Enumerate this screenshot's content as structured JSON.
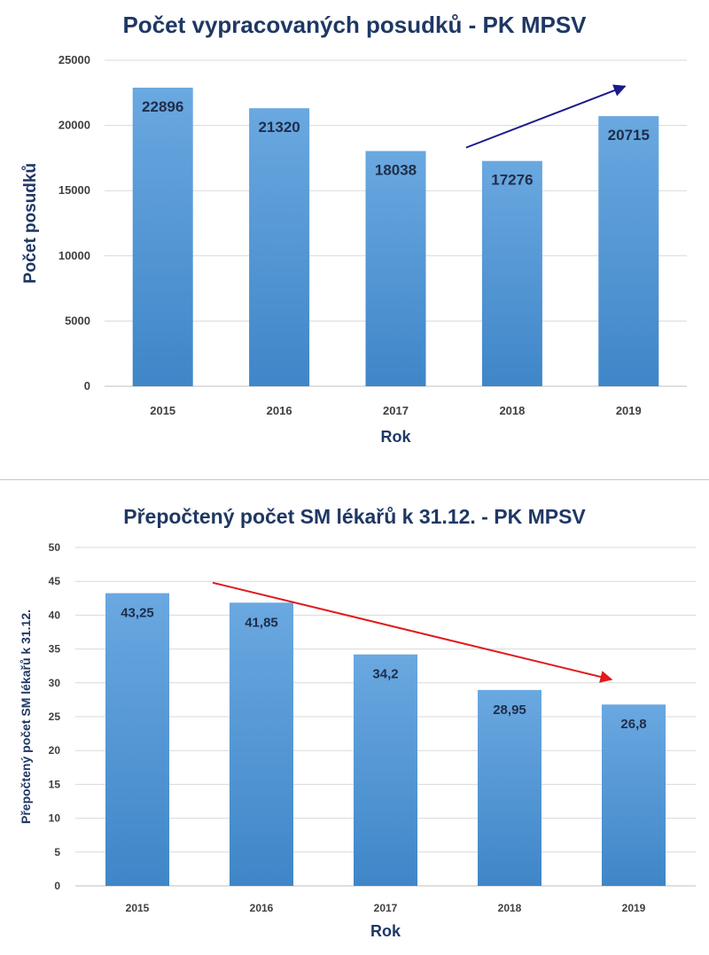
{
  "chart_data": [
    {
      "type": "bar",
      "title": "Počet vypracovaných posudků - PK MPSV",
      "xlabel": "Rok",
      "ylabel": "Počet posudků",
      "categories": [
        "2015",
        "2016",
        "2017",
        "2018",
        "2019"
      ],
      "values": [
        22896,
        21320,
        18038,
        17276,
        20715
      ],
      "value_labels": [
        "22896",
        "21320",
        "18038",
        "17276",
        "20715"
      ],
      "ylim": [
        0,
        25000
      ],
      "yticks": [
        0,
        5000,
        10000,
        15000,
        20000,
        25000
      ],
      "ytick_labels": [
        "0",
        "5000",
        "10000",
        "15000",
        "20000",
        "25000"
      ],
      "grid": true,
      "bar_color": "#5b9bd5",
      "trend_arrow": {
        "from": [
          "2018",
          18300
        ],
        "to": [
          "2019",
          23000
        ],
        "color": "#1a1a8c"
      }
    },
    {
      "type": "bar",
      "title": "Přepočtený  počet SM lékařů k 31.12. - PK MPSV",
      "xlabel": "Rok",
      "ylabel": "Přepočtený počet SM lékařů k 31.12.",
      "categories": [
        "2015",
        "2016",
        "2017",
        "2018",
        "2019"
      ],
      "values": [
        43.25,
        41.85,
        34.2,
        28.95,
        26.8
      ],
      "value_labels": [
        "43,25",
        "41,85",
        "34,2",
        "28,95",
        "26,8"
      ],
      "ylim": [
        0,
        50
      ],
      "yticks": [
        0,
        5,
        10,
        15,
        20,
        25,
        30,
        35,
        40,
        45,
        50
      ],
      "ytick_labels": [
        "0",
        "5",
        "10",
        "15",
        "20",
        "25",
        "30",
        "35",
        "40",
        "45",
        "50"
      ],
      "grid": true,
      "bar_color": "#5b9bd5",
      "trend_arrow": {
        "from": [
          "2016",
          44.8
        ],
        "to": [
          "2019",
          30.5
        ],
        "color": "#e01b1b"
      }
    }
  ]
}
